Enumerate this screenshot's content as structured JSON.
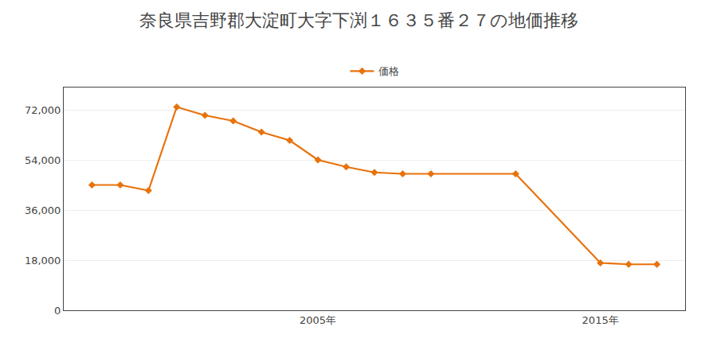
{
  "chart_data": {
    "type": "line",
    "title": "奈良県吉野郡大淀町大字下渕１６３５番２７の地価推移",
    "x": [
      1997,
      1998,
      1999,
      2000,
      2001,
      2002,
      2003,
      2004,
      2005,
      2006,
      2007,
      2008,
      2009,
      2012,
      2015,
      2016,
      2017
    ],
    "series": [
      {
        "name": "価格",
        "color": "#e8720c",
        "marker": "diamond",
        "values": [
          45000,
          45000,
          43000,
          73000,
          70000,
          68000,
          64000,
          61000,
          54000,
          51500,
          49500,
          49000,
          49000,
          49000,
          17000,
          16500,
          16500
        ]
      }
    ],
    "xlim": [
      1996,
      2018
    ],
    "xticks": [
      {
        "value": 2005,
        "label": "2005年"
      },
      {
        "value": 2015,
        "label": "2015年"
      }
    ],
    "ylim": [
      0,
      80000
    ],
    "yticks": [
      0,
      {
        "value": 18000,
        "label": "18,000"
      },
      {
        "value": 36000,
        "label": "36,000"
      },
      {
        "value": 54000,
        "label": "54,000"
      },
      {
        "value": 72000,
        "label": "72,000"
      }
    ],
    "grid": "y",
    "legend": "upper center"
  }
}
